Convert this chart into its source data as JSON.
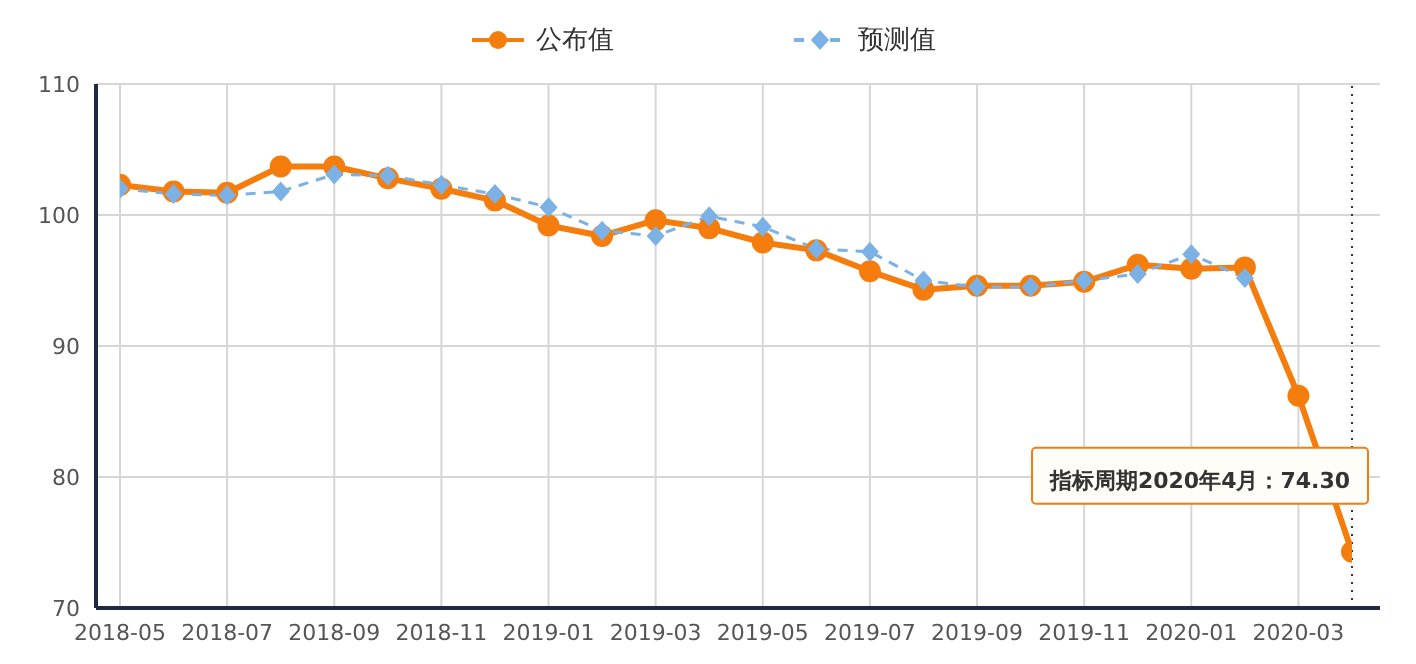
{
  "chart_data": {
    "type": "line",
    "x": [
      "2018-05",
      "2018-06",
      "2018-07",
      "2018-08",
      "2018-09",
      "2018-10",
      "2018-11",
      "2018-12",
      "2019-01",
      "2019-02",
      "2019-03",
      "2019-04",
      "2019-05",
      "2019-06",
      "2019-07",
      "2019-08",
      "2019-09",
      "2019-10",
      "2019-11",
      "2019-12",
      "2020-01",
      "2020-02",
      "2020-03",
      "2020-04"
    ],
    "series": [
      {
        "name": "公布值",
        "color": "#f47d0e",
        "marker": "circle",
        "line_style": "solid",
        "values": [
          102.3,
          101.8,
          101.7,
          103.7,
          103.7,
          102.8,
          102.0,
          101.1,
          99.2,
          98.4,
          99.6,
          99.0,
          97.9,
          97.3,
          95.7,
          94.3,
          94.6,
          94.6,
          94.9,
          96.2,
          95.9,
          96.0,
          86.2,
          74.3
        ]
      },
      {
        "name": "预测值",
        "color": "#7cb1e6",
        "marker": "diamond",
        "line_style": "dashed",
        "values": [
          102.0,
          101.6,
          101.5,
          101.8,
          103.1,
          103.0,
          102.3,
          101.6,
          100.6,
          98.8,
          98.4,
          99.9,
          99.1,
          97.4,
          97.2,
          95.0,
          94.5,
          94.5,
          95.0,
          95.5,
          97.0,
          95.2,
          null,
          null
        ]
      }
    ],
    "xlim": [
      "2018-05",
      "2020-04"
    ],
    "xticks": [
      "2018-05",
      "2018-07",
      "2018-09",
      "2018-11",
      "2019-01",
      "2019-03",
      "2019-05",
      "2019-07",
      "2019-09",
      "2019-11",
      "2020-01",
      "2020-03"
    ],
    "ylim": [
      70,
      110
    ],
    "yticks": [
      70,
      80,
      90,
      100,
      110
    ],
    "grid": true,
    "legend": "top",
    "ref_lines": [
      {
        "axis": "x",
        "value": "2020-04",
        "color": "#333333",
        "line_style": "dotted"
      }
    ],
    "annotations": [
      {
        "text": "指标周期2020年4月：74.30",
        "x": "2020-04",
        "y": 74.3
      }
    ]
  }
}
